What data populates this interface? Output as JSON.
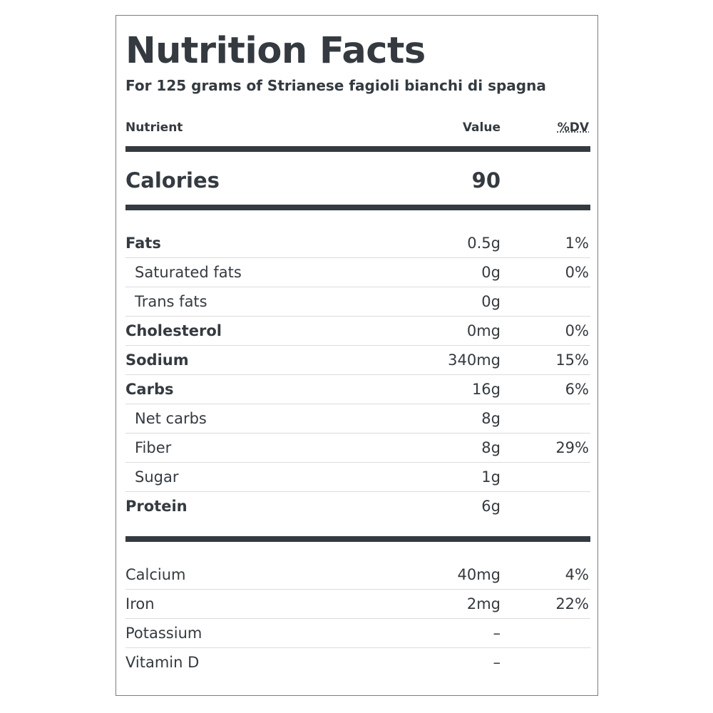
{
  "title": "Nutrition Facts",
  "subtitle": "For 125 grams of Strianese fagioli bianchi di spagna",
  "columns": {
    "nutrient": "Nutrient",
    "value": "Value",
    "dv": "%DV"
  },
  "calories": {
    "label": "Calories",
    "value": "90"
  },
  "nutrients": [
    {
      "name": "Fats",
      "value": "0.5g",
      "dv": "1%",
      "bold": true,
      "indent": false
    },
    {
      "name": "Saturated fats",
      "value": "0g",
      "dv": "0%",
      "bold": false,
      "indent": true
    },
    {
      "name": "Trans fats",
      "value": "0g",
      "dv": "",
      "bold": false,
      "indent": true
    },
    {
      "name": "Cholesterol",
      "value": "0mg",
      "dv": "0%",
      "bold": true,
      "indent": false
    },
    {
      "name": "Sodium",
      "value": "340mg",
      "dv": "15%",
      "bold": true,
      "indent": false
    },
    {
      "name": "Carbs",
      "value": "16g",
      "dv": "6%",
      "bold": true,
      "indent": false
    },
    {
      "name": "Net carbs",
      "value": "8g",
      "dv": "",
      "bold": false,
      "indent": true
    },
    {
      "name": "Fiber",
      "value": "8g",
      "dv": "29%",
      "bold": false,
      "indent": true
    },
    {
      "name": "Sugar",
      "value": "1g",
      "dv": "",
      "bold": false,
      "indent": true
    },
    {
      "name": "Protein",
      "value": "6g",
      "dv": "",
      "bold": true,
      "indent": false
    }
  ],
  "minerals": [
    {
      "name": "Calcium",
      "value": "40mg",
      "dv": "4%"
    },
    {
      "name": "Iron",
      "value": "2mg",
      "dv": "22%"
    },
    {
      "name": "Potassium",
      "value": "–",
      "dv": ""
    },
    {
      "name": "Vitamin D",
      "value": "–",
      "dv": ""
    }
  ]
}
